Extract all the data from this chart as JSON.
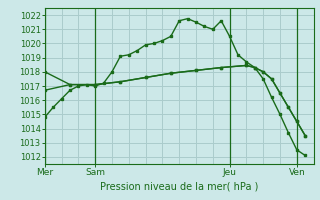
{
  "title": "Pression niveau de la mer( hPa )",
  "bg_color": "#cce8e8",
  "grid_color": "#aacccc",
  "line_color": "#1a6b1a",
  "ylim": [
    1011.5,
    1022.5
  ],
  "yticks": [
    1012,
    1013,
    1014,
    1015,
    1016,
    1017,
    1018,
    1019,
    1020,
    1021,
    1022
  ],
  "day_labels": [
    "Mer",
    "Sam",
    "Jeu",
    "Ven"
  ],
  "day_positions": [
    0,
    6,
    22,
    30
  ],
  "xlim": [
    0,
    32
  ],
  "num_vgrid": 17,
  "series1_x": [
    0,
    1,
    2,
    3,
    4,
    5,
    6,
    7,
    8,
    9,
    10,
    11,
    12,
    13,
    14,
    15,
    16,
    17,
    18,
    19,
    20,
    21,
    22,
    23,
    24,
    25,
    26,
    27,
    28,
    29,
    30,
    31
  ],
  "series1_y": [
    1014.8,
    1015.5,
    1016.1,
    1016.7,
    1017.0,
    1017.1,
    1017.0,
    1017.2,
    1018.0,
    1019.1,
    1019.2,
    1019.5,
    1019.9,
    1020.0,
    1020.2,
    1020.5,
    1021.6,
    1021.75,
    1021.5,
    1021.2,
    1021.0,
    1021.6,
    1020.5,
    1019.2,
    1018.7,
    1018.3,
    1017.5,
    1016.2,
    1015.0,
    1013.7,
    1012.5,
    1012.1
  ],
  "series2_x": [
    0,
    3,
    6,
    9,
    12,
    15,
    18,
    21,
    24,
    25,
    26,
    27,
    28,
    29,
    30,
    31
  ],
  "series2_y": [
    1018.0,
    1017.1,
    1017.1,
    1017.3,
    1017.6,
    1017.9,
    1018.1,
    1018.3,
    1018.45,
    1018.3,
    1018.0,
    1017.5,
    1016.5,
    1015.5,
    1014.5,
    1013.5
  ],
  "series3_x": [
    0,
    3,
    6,
    9,
    12,
    15,
    18,
    21,
    24,
    25,
    26,
    27,
    28,
    29,
    30,
    31
  ],
  "series3_y": [
    1016.7,
    1017.1,
    1017.1,
    1017.3,
    1017.6,
    1017.9,
    1018.1,
    1018.3,
    1018.45,
    1018.3,
    1018.0,
    1017.5,
    1016.5,
    1015.5,
    1014.5,
    1013.5
  ]
}
